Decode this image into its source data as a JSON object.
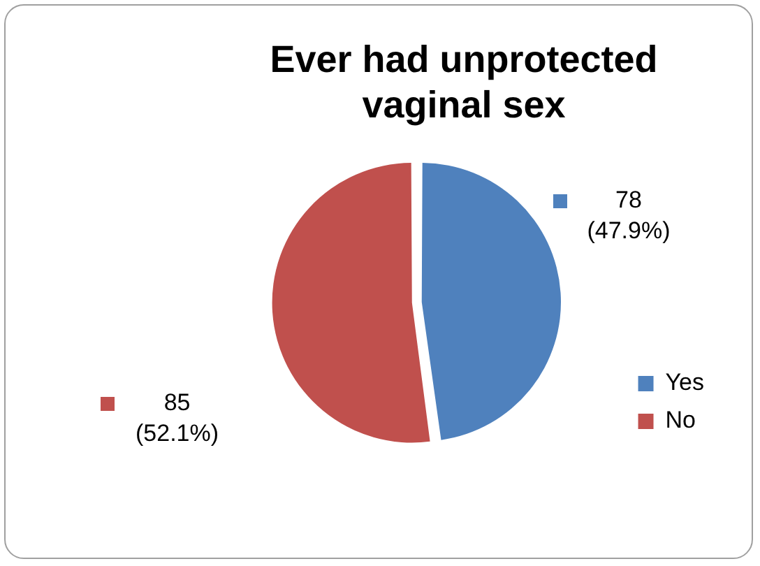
{
  "chart_data": {
    "type": "pie",
    "title": "Ever had unprotected vaginal sex",
    "categories": [
      "Yes",
      "No"
    ],
    "values": [
      78,
      85
    ],
    "colors": [
      "#4f81bd",
      "#c0504d"
    ],
    "value_labels": [
      "78\n(47.9%)",
      "85\n(52.1%)"
    ],
    "legend": "bottom right"
  }
}
